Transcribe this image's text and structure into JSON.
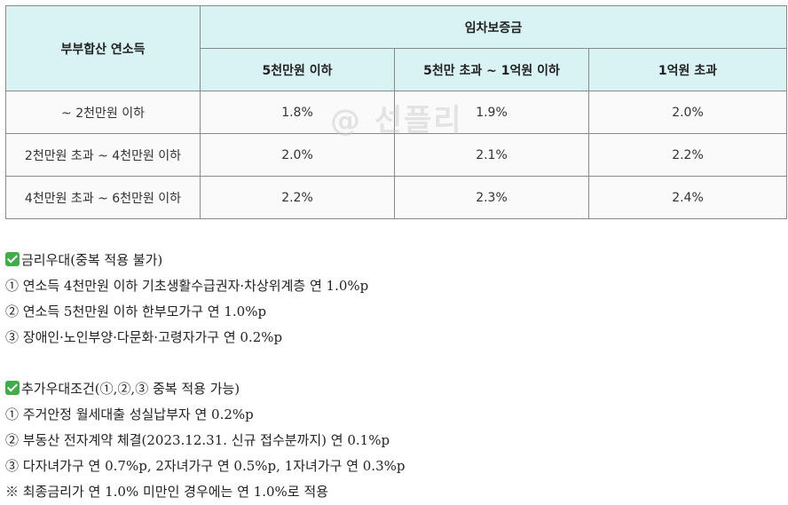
{
  "table": {
    "row_header": "부부합산 연소득",
    "group_header": "임차보증금",
    "col_headers": [
      "5천만원 이하",
      "5천만 초과 ~ 1억원 이하",
      "1억원 초과"
    ],
    "rows": [
      {
        "label": "~ 2천만원 이하",
        "values": [
          "1.8%",
          "1.9%",
          "2.0%"
        ]
      },
      {
        "label": "2천만원 초과 ~ 4천만원 이하",
        "values": [
          "2.0%",
          "2.1%",
          "2.2%"
        ]
      },
      {
        "label": "4천만원 초과 ~ 6천만원 이하",
        "values": [
          "2.2%",
          "2.3%",
          "2.4%"
        ]
      }
    ]
  },
  "watermark": "@ 선플리",
  "section1": {
    "title": "금리우대(중복 적용 불가)",
    "items": [
      "① 연소득 4천만원 이하 기초생활수급권자·차상위계층 연 1.0%p",
      "② 연소득 5천만원 이하 한부모가구 연 1.0%p",
      "③ 장애인·노인부양·다문화·고령자가구 연 0.2%p"
    ]
  },
  "section2": {
    "title": "추가우대조건(①,②,③ 중복 적용 가능)",
    "items": [
      "① 주거안정 월세대출 성실납부자 연 0.2%p",
      "② 부동산 전자계약 체결(2023.12.31. 신규 접수분까지) 연 0.1%p",
      "③ 다자녀가구 연 0.7%p, 2자녀가구 연 0.5%p, 1자녀가구 연 0.3%p",
      "※ 최종금리가 연 1.0% 미만인 경우에는 연 1.0%로 적용"
    ]
  }
}
